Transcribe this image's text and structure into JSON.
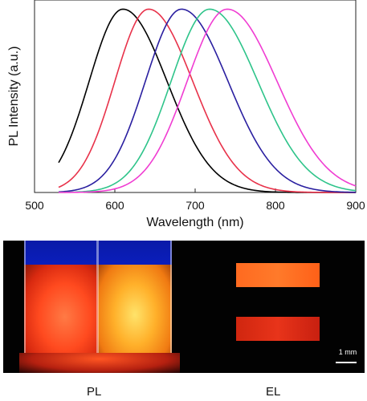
{
  "chart_data": {
    "type": "line",
    "title": "",
    "xlabel": "Wavelength (nm)",
    "ylabel": "PL Intensity (a.u.)",
    "xlim": [
      500,
      900
    ],
    "ylim": [
      0,
      1.05
    ],
    "xticks": [
      500,
      600,
      700,
      800,
      900
    ],
    "grid": false,
    "legend": "none",
    "series": [
      {
        "color": "#000000",
        "peak": 610,
        "width_left": 42,
        "width_right": 55,
        "x_start": 530,
        "x_end": 900
      },
      {
        "color": "#e8324a",
        "peak": 642,
        "width_left": 42,
        "width_right": 55,
        "x_start": 530,
        "x_end": 900
      },
      {
        "color": "#2a1fa0",
        "peak": 683,
        "width_left": 45,
        "width_right": 58,
        "x_start": 530,
        "x_end": 900
      },
      {
        "color": "#2ec48a",
        "peak": 718,
        "width_left": 48,
        "width_right": 60,
        "x_start": 530,
        "x_end": 900
      },
      {
        "color": "#f03cd2",
        "peak": 740,
        "width_left": 50,
        "width_right": 62,
        "x_start": 530,
        "x_end": 900
      }
    ]
  },
  "photo": {
    "scale_label": "1 mm"
  },
  "captions": {
    "pl": "PL",
    "el": "EL"
  }
}
